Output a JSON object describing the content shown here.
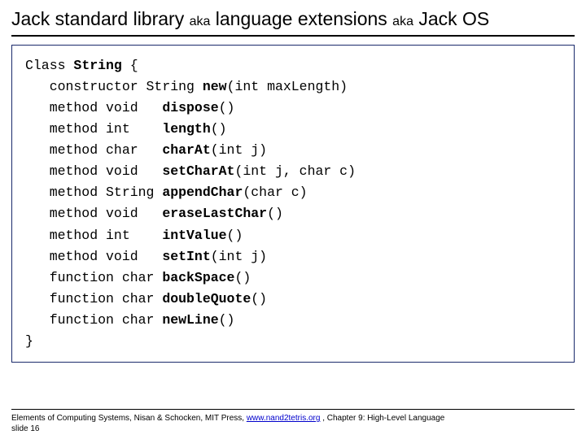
{
  "title": {
    "main1": "Jack standard library ",
    "aka1": "aka",
    "main2": " language extensions ",
    "aka2": "aka",
    "main3": " Jack OS",
    "fontsize_main": 23,
    "fontsize_aka": 16,
    "color": "#000000"
  },
  "code": {
    "border_color": "#1a2a6b",
    "font_family": "Courier New",
    "font_size": 16.5,
    "lines": [
      {
        "pre": "Class ",
        "bold": "String",
        "post": " {"
      },
      {
        "pre": "   constructor String ",
        "bold": "new",
        "post": "(int maxLength)"
      },
      {
        "pre": "   method void   ",
        "bold": "dispose",
        "post": "()"
      },
      {
        "pre": "   method int    ",
        "bold": "length",
        "post": "()"
      },
      {
        "pre": "   method char   ",
        "bold": "charAt",
        "post": "(int j)"
      },
      {
        "pre": "   method void   ",
        "bold": "setCharAt",
        "post": "(int j, char c)"
      },
      {
        "pre": "   method String ",
        "bold": "appendChar",
        "post": "(char c)"
      },
      {
        "pre": "   method void   ",
        "bold": "eraseLastChar",
        "post": "()"
      },
      {
        "pre": "   method int    ",
        "bold": "intValue",
        "post": "()"
      },
      {
        "pre": "   method void   ",
        "bold": "setInt",
        "post": "(int j)"
      },
      {
        "pre": "   function char ",
        "bold": "backSpace",
        "post": "()"
      },
      {
        "pre": "   function char ",
        "bold": "doubleQuote",
        "post": "()"
      },
      {
        "pre": "   function char ",
        "bold": "newLine",
        "post": "()"
      },
      {
        "pre": "}",
        "bold": "",
        "post": ""
      }
    ]
  },
  "footer": {
    "text1": "Elements of Computing Systems, Nisan & Schocken, MIT Press, ",
    "link": "www.nand2tetris.org",
    "text2": " , Chapter 9: High-Level Language",
    "text3": "slide 16",
    "font_size": 10
  }
}
